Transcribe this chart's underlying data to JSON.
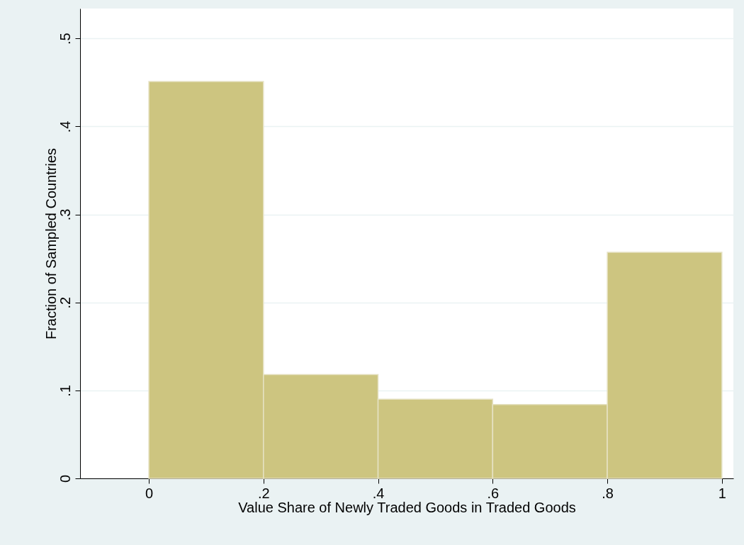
{
  "chart_data": {
    "type": "histogram",
    "xlabel": "Value Share of Newly Traded Goods in Traded Goods",
    "ylabel": "Fraction of Sampled Countries",
    "bins": [
      0,
      0.2,
      0.4,
      0.6,
      0.8,
      1
    ],
    "values": [
      0.451,
      0.118,
      0.09,
      0.084,
      0.257
    ],
    "color": "#cdc580",
    "xlim": [
      -0.12,
      1.02
    ],
    "ylim": [
      0,
      0.534
    ],
    "xticks": [
      0,
      {
        "value": 0.2,
        "label": ".2"
      },
      {
        "value": 0.4,
        "label": ".4"
      },
      {
        "value": 0.6,
        "label": ".6"
      },
      {
        "value": 0.8,
        "label": ".8"
      },
      1
    ],
    "yticks": [
      0,
      {
        "value": 0.1,
        "label": ".1"
      },
      {
        "value": 0.2,
        "label": ".2"
      },
      {
        "value": 0.3,
        "label": ".3"
      },
      {
        "value": 0.4,
        "label": ".4"
      },
      {
        "value": 0.5,
        "label": ".5"
      }
    ],
    "grid": "y"
  }
}
